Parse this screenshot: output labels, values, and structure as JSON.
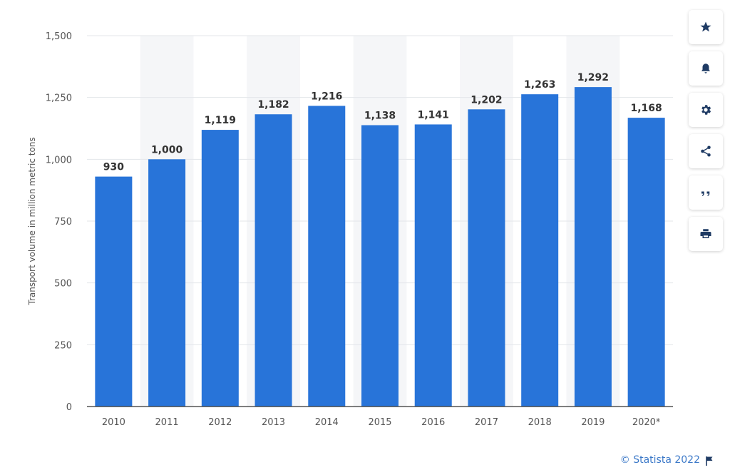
{
  "chart_data": {
    "type": "bar",
    "categories": [
      "2010",
      "2011",
      "2012",
      "2013",
      "2014",
      "2015",
      "2016",
      "2017",
      "2018",
      "2019",
      "2020*"
    ],
    "values": [
      930,
      1000,
      1119,
      1182,
      1216,
      1138,
      1141,
      1202,
      1263,
      1292,
      1168
    ],
    "value_labels": [
      "930",
      "1,000",
      "1,119",
      "1,182",
      "1,216",
      "1,138",
      "1,141",
      "1,202",
      "1,263",
      "1,292",
      "1,168"
    ],
    "y_ticks": [
      0,
      250,
      500,
      750,
      1000,
      1250,
      1500
    ],
    "y_tick_labels": [
      "0",
      "250",
      "500",
      "750",
      "1,000",
      "1,250",
      "1,500"
    ],
    "ylim": [
      0,
      1500
    ],
    "ylabel": "Transport volume in million metric tons",
    "xlabel": "",
    "bar_color": "#2874d9",
    "grid": true
  },
  "toolbar": {
    "icons": [
      "star-icon",
      "bell-icon",
      "gear-icon",
      "share-icon",
      "quote-icon",
      "print-icon"
    ]
  },
  "footer": {
    "credit": "© Statista 2022",
    "credit_color": "#3c79c8"
  }
}
